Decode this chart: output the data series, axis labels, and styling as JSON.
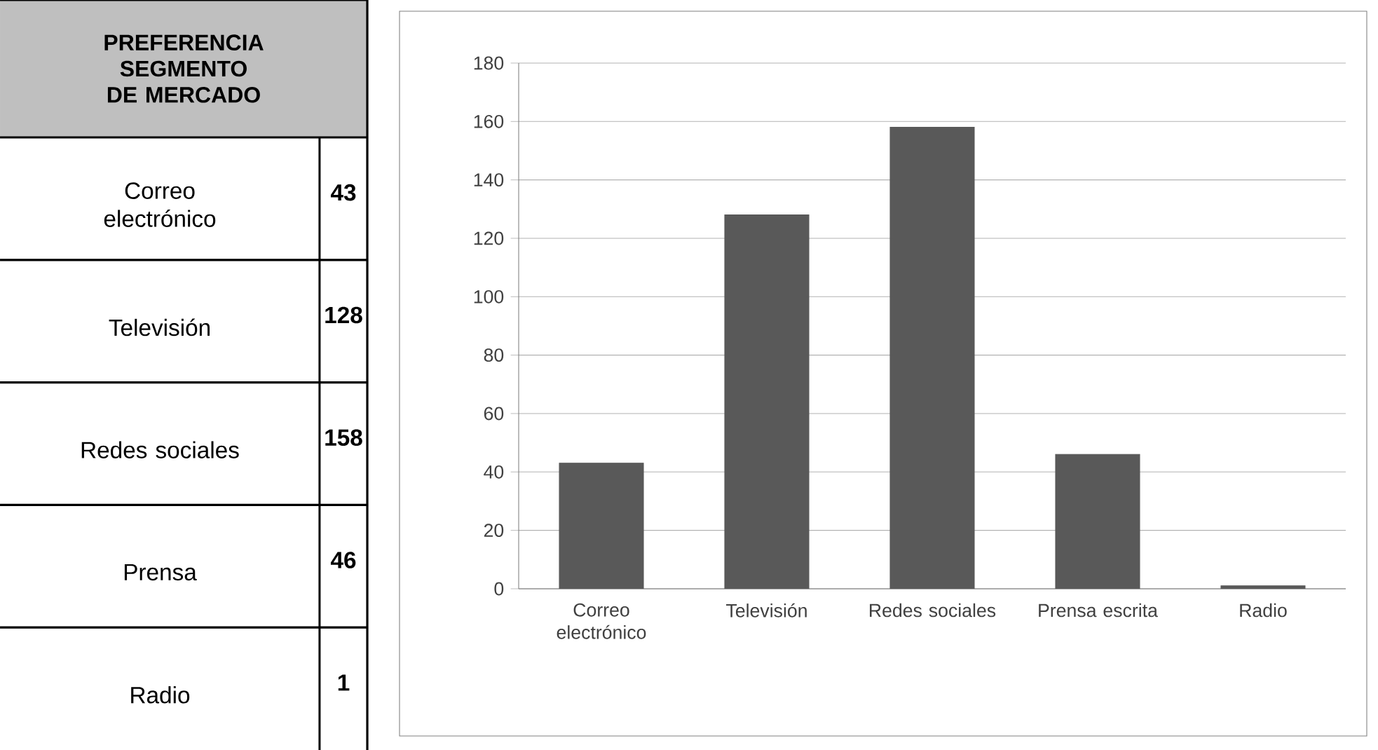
{
  "chart_data": [
    {
      "type": "other",
      "title": "PREFERENCIA SEGMENTO DE MERCADO",
      "categories": [
        "Correo electrónico",
        "Televisión",
        "Redes sociales",
        "Prensa",
        "Radio"
      ],
      "value_labels": [
        "43",
        "128",
        "158",
        "46",
        "1"
      ]
    },
    {
      "type": "bar",
      "categories": [
        "Correo electrónico",
        "Televisión",
        "Redes sociales",
        "Prensa escrita",
        "Radio"
      ],
      "values": [
        43,
        128,
        158,
        46,
        1
      ],
      "color": "#595959",
      "ylim": [
        0,
        180
      ],
      "yticks": [
        0,
        20,
        40,
        60,
        80,
        100,
        120,
        140,
        160,
        180
      ],
      "grid": "y"
    }
  ]
}
